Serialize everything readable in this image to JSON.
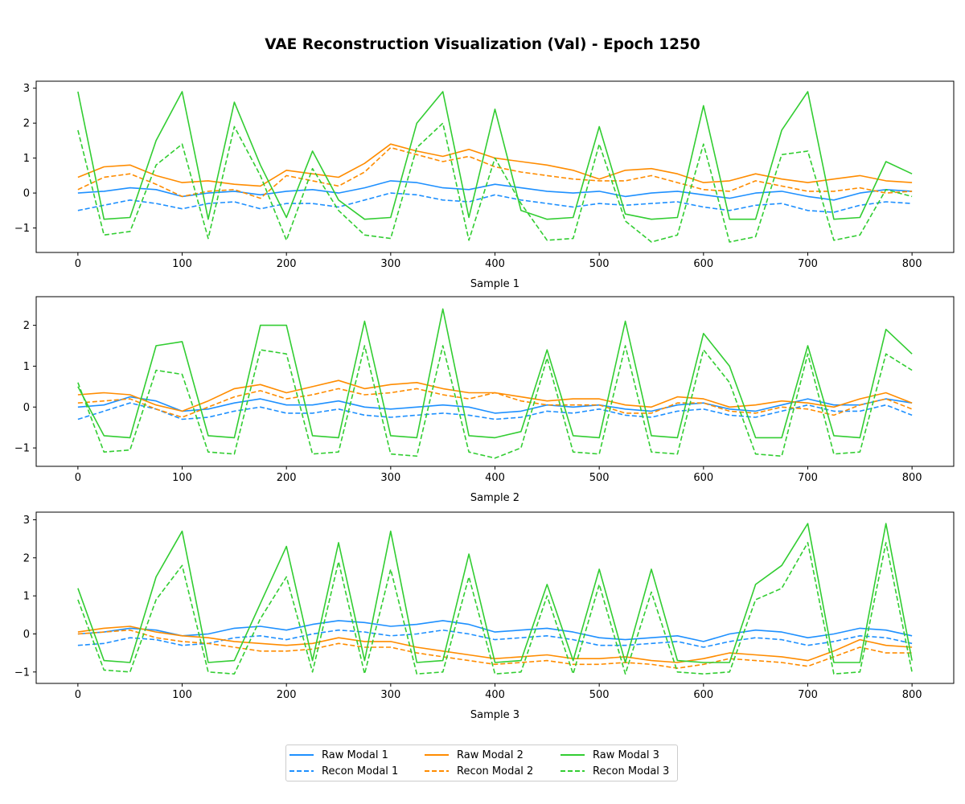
{
  "title": "VAE Reconstruction Visualization (Val) - Epoch 1250",
  "colors": {
    "modal1": "#1e90ff",
    "modal2": "#ff8c00",
    "modal3": "#32cd32"
  },
  "legend": {
    "raw1": "Raw Modal 1",
    "raw2": "Raw Modal 2",
    "raw3": "Raw Modal 3",
    "recon1": "Recon Modal 1",
    "recon2": "Recon Modal 2",
    "recon3": "Recon Modal 3"
  },
  "chart_data": [
    {
      "type": "line",
      "xlabel": "Sample 1",
      "xlim": [
        -40,
        840
      ],
      "ylim": [
        -1.7,
        3.2
      ],
      "xticks": [
        0,
        100,
        200,
        300,
        400,
        500,
        600,
        700,
        800
      ],
      "yticks": [
        -1,
        0,
        1,
        2,
        3
      ],
      "x": [
        0,
        25,
        50,
        75,
        100,
        125,
        150,
        175,
        200,
        225,
        250,
        275,
        300,
        325,
        350,
        375,
        400,
        425,
        450,
        475,
        500,
        525,
        550,
        575,
        600,
        625,
        650,
        675,
        700,
        725,
        750,
        775,
        800
      ],
      "series": [
        {
          "name": "Raw Modal 1",
          "modal": 1,
          "style": "solid",
          "values": [
            0.0,
            0.05,
            0.15,
            0.1,
            -0.1,
            0.0,
            0.05,
            -0.05,
            0.05,
            0.1,
            0.0,
            0.15,
            0.35,
            0.3,
            0.15,
            0.1,
            0.25,
            0.15,
            0.05,
            0.0,
            0.05,
            -0.1,
            0.0,
            0.05,
            -0.05,
            -0.15,
            0.0,
            0.05,
            -0.1,
            -0.2,
            0.0,
            0.1,
            0.05
          ]
        },
        {
          "name": "Recon Modal 1",
          "modal": 1,
          "style": "dashed",
          "values": [
            -0.5,
            -0.35,
            -0.2,
            -0.3,
            -0.45,
            -0.3,
            -0.25,
            -0.45,
            -0.3,
            -0.3,
            -0.4,
            -0.2,
            0.0,
            -0.05,
            -0.2,
            -0.25,
            -0.05,
            -0.2,
            -0.3,
            -0.4,
            -0.3,
            -0.35,
            -0.3,
            -0.25,
            -0.4,
            -0.5,
            -0.35,
            -0.3,
            -0.5,
            -0.55,
            -0.35,
            -0.25,
            -0.3
          ]
        },
        {
          "name": "Raw Modal 2",
          "modal": 2,
          "style": "solid",
          "values": [
            0.45,
            0.75,
            0.8,
            0.5,
            0.3,
            0.35,
            0.25,
            0.2,
            0.65,
            0.55,
            0.45,
            0.85,
            1.4,
            1.2,
            1.05,
            1.25,
            1.0,
            0.9,
            0.8,
            0.65,
            0.4,
            0.65,
            0.7,
            0.55,
            0.3,
            0.35,
            0.55,
            0.4,
            0.3,
            0.4,
            0.5,
            0.35,
            0.3
          ]
        },
        {
          "name": "Recon Modal 2",
          "modal": 2,
          "style": "dashed",
          "values": [
            0.1,
            0.45,
            0.55,
            0.25,
            -0.1,
            0.05,
            0.1,
            -0.15,
            0.5,
            0.35,
            0.2,
            0.6,
            1.3,
            1.1,
            0.9,
            1.05,
            0.75,
            0.6,
            0.5,
            0.4,
            0.35,
            0.35,
            0.5,
            0.3,
            0.1,
            0.05,
            0.35,
            0.2,
            0.05,
            0.05,
            0.15,
            0.0,
            0.05
          ]
        },
        {
          "name": "Raw Modal 3",
          "modal": 3,
          "style": "solid",
          "values": [
            2.9,
            -0.75,
            -0.7,
            1.5,
            2.9,
            -0.75,
            2.6,
            0.8,
            -0.7,
            1.2,
            -0.2,
            -0.75,
            -0.7,
            2.0,
            2.9,
            -0.7,
            2.4,
            -0.5,
            -0.75,
            -0.7,
            1.9,
            -0.6,
            -0.75,
            -0.7,
            2.5,
            -0.75,
            -0.75,
            1.8,
            2.9,
            -0.75,
            -0.7,
            0.9,
            0.55
          ]
        },
        {
          "name": "Recon Modal 3",
          "modal": 3,
          "style": "dashed",
          "values": [
            1.8,
            -1.2,
            -1.1,
            0.8,
            1.4,
            -1.3,
            1.9,
            0.5,
            -1.35,
            0.7,
            -0.5,
            -1.2,
            -1.3,
            1.3,
            2.0,
            -1.35,
            1.0,
            -0.3,
            -1.35,
            -1.3,
            1.4,
            -0.8,
            -1.4,
            -1.2,
            1.4,
            -1.4,
            -1.25,
            1.1,
            1.2,
            -1.35,
            -1.2,
            0.1,
            -0.1
          ]
        }
      ]
    },
    {
      "type": "line",
      "xlabel": "Sample 2",
      "xlim": [
        -40,
        840
      ],
      "ylim": [
        -1.45,
        2.7
      ],
      "xticks": [
        0,
        100,
        200,
        300,
        400,
        500,
        600,
        700,
        800
      ],
      "yticks": [
        -1,
        0,
        1,
        2
      ],
      "x": [
        0,
        25,
        50,
        75,
        100,
        125,
        150,
        175,
        200,
        225,
        250,
        275,
        300,
        325,
        350,
        375,
        400,
        425,
        450,
        475,
        500,
        525,
        550,
        575,
        600,
        625,
        650,
        675,
        700,
        725,
        750,
        775,
        800
      ],
      "series": [
        {
          "name": "Raw Modal 1",
          "modal": 1,
          "style": "solid",
          "values": [
            0.0,
            0.05,
            0.25,
            0.15,
            -0.1,
            -0.05,
            0.1,
            0.2,
            0.05,
            0.05,
            0.15,
            0.0,
            -0.05,
            0.0,
            0.05,
            0.0,
            -0.15,
            -0.1,
            0.05,
            0.0,
            0.05,
            -0.05,
            -0.1,
            0.05,
            0.1,
            -0.05,
            -0.1,
            0.05,
            0.2,
            0.05,
            0.05,
            0.2,
            0.1
          ]
        },
        {
          "name": "Recon Modal 1",
          "modal": 1,
          "style": "dashed",
          "values": [
            -0.3,
            -0.1,
            0.1,
            -0.05,
            -0.3,
            -0.25,
            -0.1,
            0.0,
            -0.15,
            -0.15,
            -0.05,
            -0.2,
            -0.25,
            -0.2,
            -0.15,
            -0.2,
            -0.3,
            -0.25,
            -0.1,
            -0.15,
            -0.05,
            -0.2,
            -0.25,
            -0.1,
            -0.05,
            -0.2,
            -0.25,
            -0.1,
            0.05,
            -0.1,
            -0.1,
            0.05,
            -0.2
          ]
        },
        {
          "name": "Raw Modal 2",
          "modal": 2,
          "style": "solid",
          "values": [
            0.3,
            0.35,
            0.3,
            0.05,
            -0.1,
            0.15,
            0.45,
            0.55,
            0.35,
            0.5,
            0.65,
            0.45,
            0.55,
            0.6,
            0.45,
            0.35,
            0.35,
            0.25,
            0.15,
            0.2,
            0.2,
            0.05,
            0.0,
            0.25,
            0.2,
            0.0,
            0.05,
            0.15,
            0.1,
            0.0,
            0.2,
            0.35,
            0.1
          ]
        },
        {
          "name": "Recon Modal 2",
          "modal": 2,
          "style": "dashed",
          "values": [
            0.1,
            0.15,
            0.2,
            -0.05,
            -0.25,
            0.0,
            0.25,
            0.4,
            0.2,
            0.3,
            0.45,
            0.3,
            0.35,
            0.45,
            0.3,
            0.2,
            0.35,
            0.15,
            0.05,
            0.05,
            0.05,
            -0.15,
            -0.15,
            0.1,
            0.1,
            -0.1,
            -0.15,
            0.0,
            -0.05,
            -0.2,
            0.05,
            0.2,
            -0.05
          ]
        },
        {
          "name": "Raw Modal 3",
          "modal": 3,
          "style": "solid",
          "values": [
            0.5,
            -0.7,
            -0.75,
            1.5,
            1.6,
            -0.7,
            -0.75,
            2.0,
            2.0,
            -0.7,
            -0.75,
            2.1,
            -0.7,
            -0.75,
            2.4,
            -0.7,
            -0.75,
            -0.6,
            1.4,
            -0.7,
            -0.75,
            2.1,
            -0.7,
            -0.75,
            1.8,
            1.0,
            -0.75,
            -0.75,
            1.5,
            -0.7,
            -0.75,
            1.9,
            1.3
          ]
        },
        {
          "name": "Recon Modal 3",
          "modal": 3,
          "style": "dashed",
          "values": [
            0.6,
            -1.1,
            -1.05,
            0.9,
            0.8,
            -1.1,
            -1.15,
            1.4,
            1.3,
            -1.15,
            -1.1,
            1.5,
            -1.15,
            -1.2,
            1.5,
            -1.1,
            -1.25,
            -1.0,
            1.2,
            -1.1,
            -1.15,
            1.5,
            -1.1,
            -1.15,
            1.4,
            0.6,
            -1.15,
            -1.2,
            1.3,
            -1.15,
            -1.1,
            1.3,
            0.9
          ]
        }
      ]
    },
    {
      "type": "line",
      "xlabel": "Sample 3",
      "xlim": [
        -40,
        840
      ],
      "ylim": [
        -1.3,
        3.2
      ],
      "xticks": [
        0,
        100,
        200,
        300,
        400,
        500,
        600,
        700,
        800
      ],
      "yticks": [
        -1,
        0,
        1,
        2,
        3
      ],
      "x": [
        0,
        25,
        50,
        75,
        100,
        125,
        150,
        175,
        200,
        225,
        250,
        275,
        300,
        325,
        350,
        375,
        400,
        425,
        450,
        475,
        500,
        525,
        550,
        575,
        600,
        625,
        650,
        675,
        700,
        725,
        750,
        775,
        800
      ],
      "series": [
        {
          "name": "Raw Modal 1",
          "modal": 1,
          "style": "solid",
          "values": [
            0.0,
            0.05,
            0.15,
            0.1,
            -0.05,
            0.0,
            0.15,
            0.2,
            0.1,
            0.25,
            0.35,
            0.3,
            0.2,
            0.25,
            0.35,
            0.25,
            0.05,
            0.1,
            0.15,
            0.05,
            -0.1,
            -0.15,
            -0.1,
            -0.05,
            -0.2,
            0.0,
            0.1,
            0.05,
            -0.1,
            0.0,
            0.15,
            0.1,
            -0.05
          ]
        },
        {
          "name": "Recon Modal 1",
          "modal": 1,
          "style": "dashed",
          "values": [
            -0.3,
            -0.25,
            -0.1,
            -0.15,
            -0.3,
            -0.25,
            -0.1,
            -0.05,
            -0.15,
            0.0,
            0.1,
            0.05,
            -0.05,
            0.0,
            0.1,
            0.0,
            -0.15,
            -0.1,
            -0.05,
            -0.15,
            -0.3,
            -0.3,
            -0.25,
            -0.2,
            -0.35,
            -0.2,
            -0.1,
            -0.15,
            -0.3,
            -0.2,
            -0.05,
            -0.1,
            -0.25
          ]
        },
        {
          "name": "Raw Modal 2",
          "modal": 2,
          "style": "solid",
          "values": [
            0.05,
            0.15,
            0.2,
            0.05,
            -0.05,
            -0.1,
            -0.2,
            -0.25,
            -0.3,
            -0.25,
            -0.1,
            -0.2,
            -0.2,
            -0.35,
            -0.45,
            -0.55,
            -0.65,
            -0.6,
            -0.55,
            -0.65,
            -0.65,
            -0.6,
            -0.7,
            -0.75,
            -0.65,
            -0.5,
            -0.55,
            -0.6,
            -0.7,
            -0.45,
            -0.15,
            -0.3,
            -0.35
          ]
        },
        {
          "name": "Recon Modal 2",
          "modal": 2,
          "style": "dashed",
          "values": [
            0.0,
            0.05,
            0.1,
            -0.1,
            -0.2,
            -0.25,
            -0.35,
            -0.45,
            -0.45,
            -0.4,
            -0.25,
            -0.35,
            -0.35,
            -0.5,
            -0.6,
            -0.7,
            -0.8,
            -0.75,
            -0.7,
            -0.8,
            -0.8,
            -0.75,
            -0.8,
            -0.9,
            -0.8,
            -0.65,
            -0.7,
            -0.75,
            -0.85,
            -0.6,
            -0.35,
            -0.5,
            -0.5
          ]
        },
        {
          "name": "Raw Modal 3",
          "modal": 3,
          "style": "solid",
          "values": [
            1.2,
            -0.7,
            -0.75,
            1.5,
            2.7,
            -0.75,
            -0.7,
            0.8,
            2.3,
            -0.7,
            2.4,
            -0.7,
            2.7,
            -0.75,
            -0.7,
            2.1,
            -0.75,
            -0.7,
            1.3,
            -0.7,
            1.7,
            -0.75,
            1.7,
            -0.7,
            -0.75,
            -0.75,
            1.3,
            1.8,
            2.9,
            -0.75,
            -0.75,
            2.9,
            -0.7
          ]
        },
        {
          "name": "Recon Modal 3",
          "modal": 3,
          "style": "dashed",
          "values": [
            0.9,
            -0.95,
            -1.0,
            0.9,
            1.8,
            -1.0,
            -1.05,
            0.4,
            1.5,
            -1.0,
            1.9,
            -1.05,
            1.7,
            -1.05,
            -1.0,
            1.5,
            -1.05,
            -1.0,
            1.0,
            -1.05,
            1.3,
            -1.05,
            1.1,
            -1.0,
            -1.05,
            -1.0,
            0.9,
            1.2,
            2.4,
            -1.05,
            -1.0,
            2.4,
            -1.0
          ]
        }
      ]
    }
  ]
}
